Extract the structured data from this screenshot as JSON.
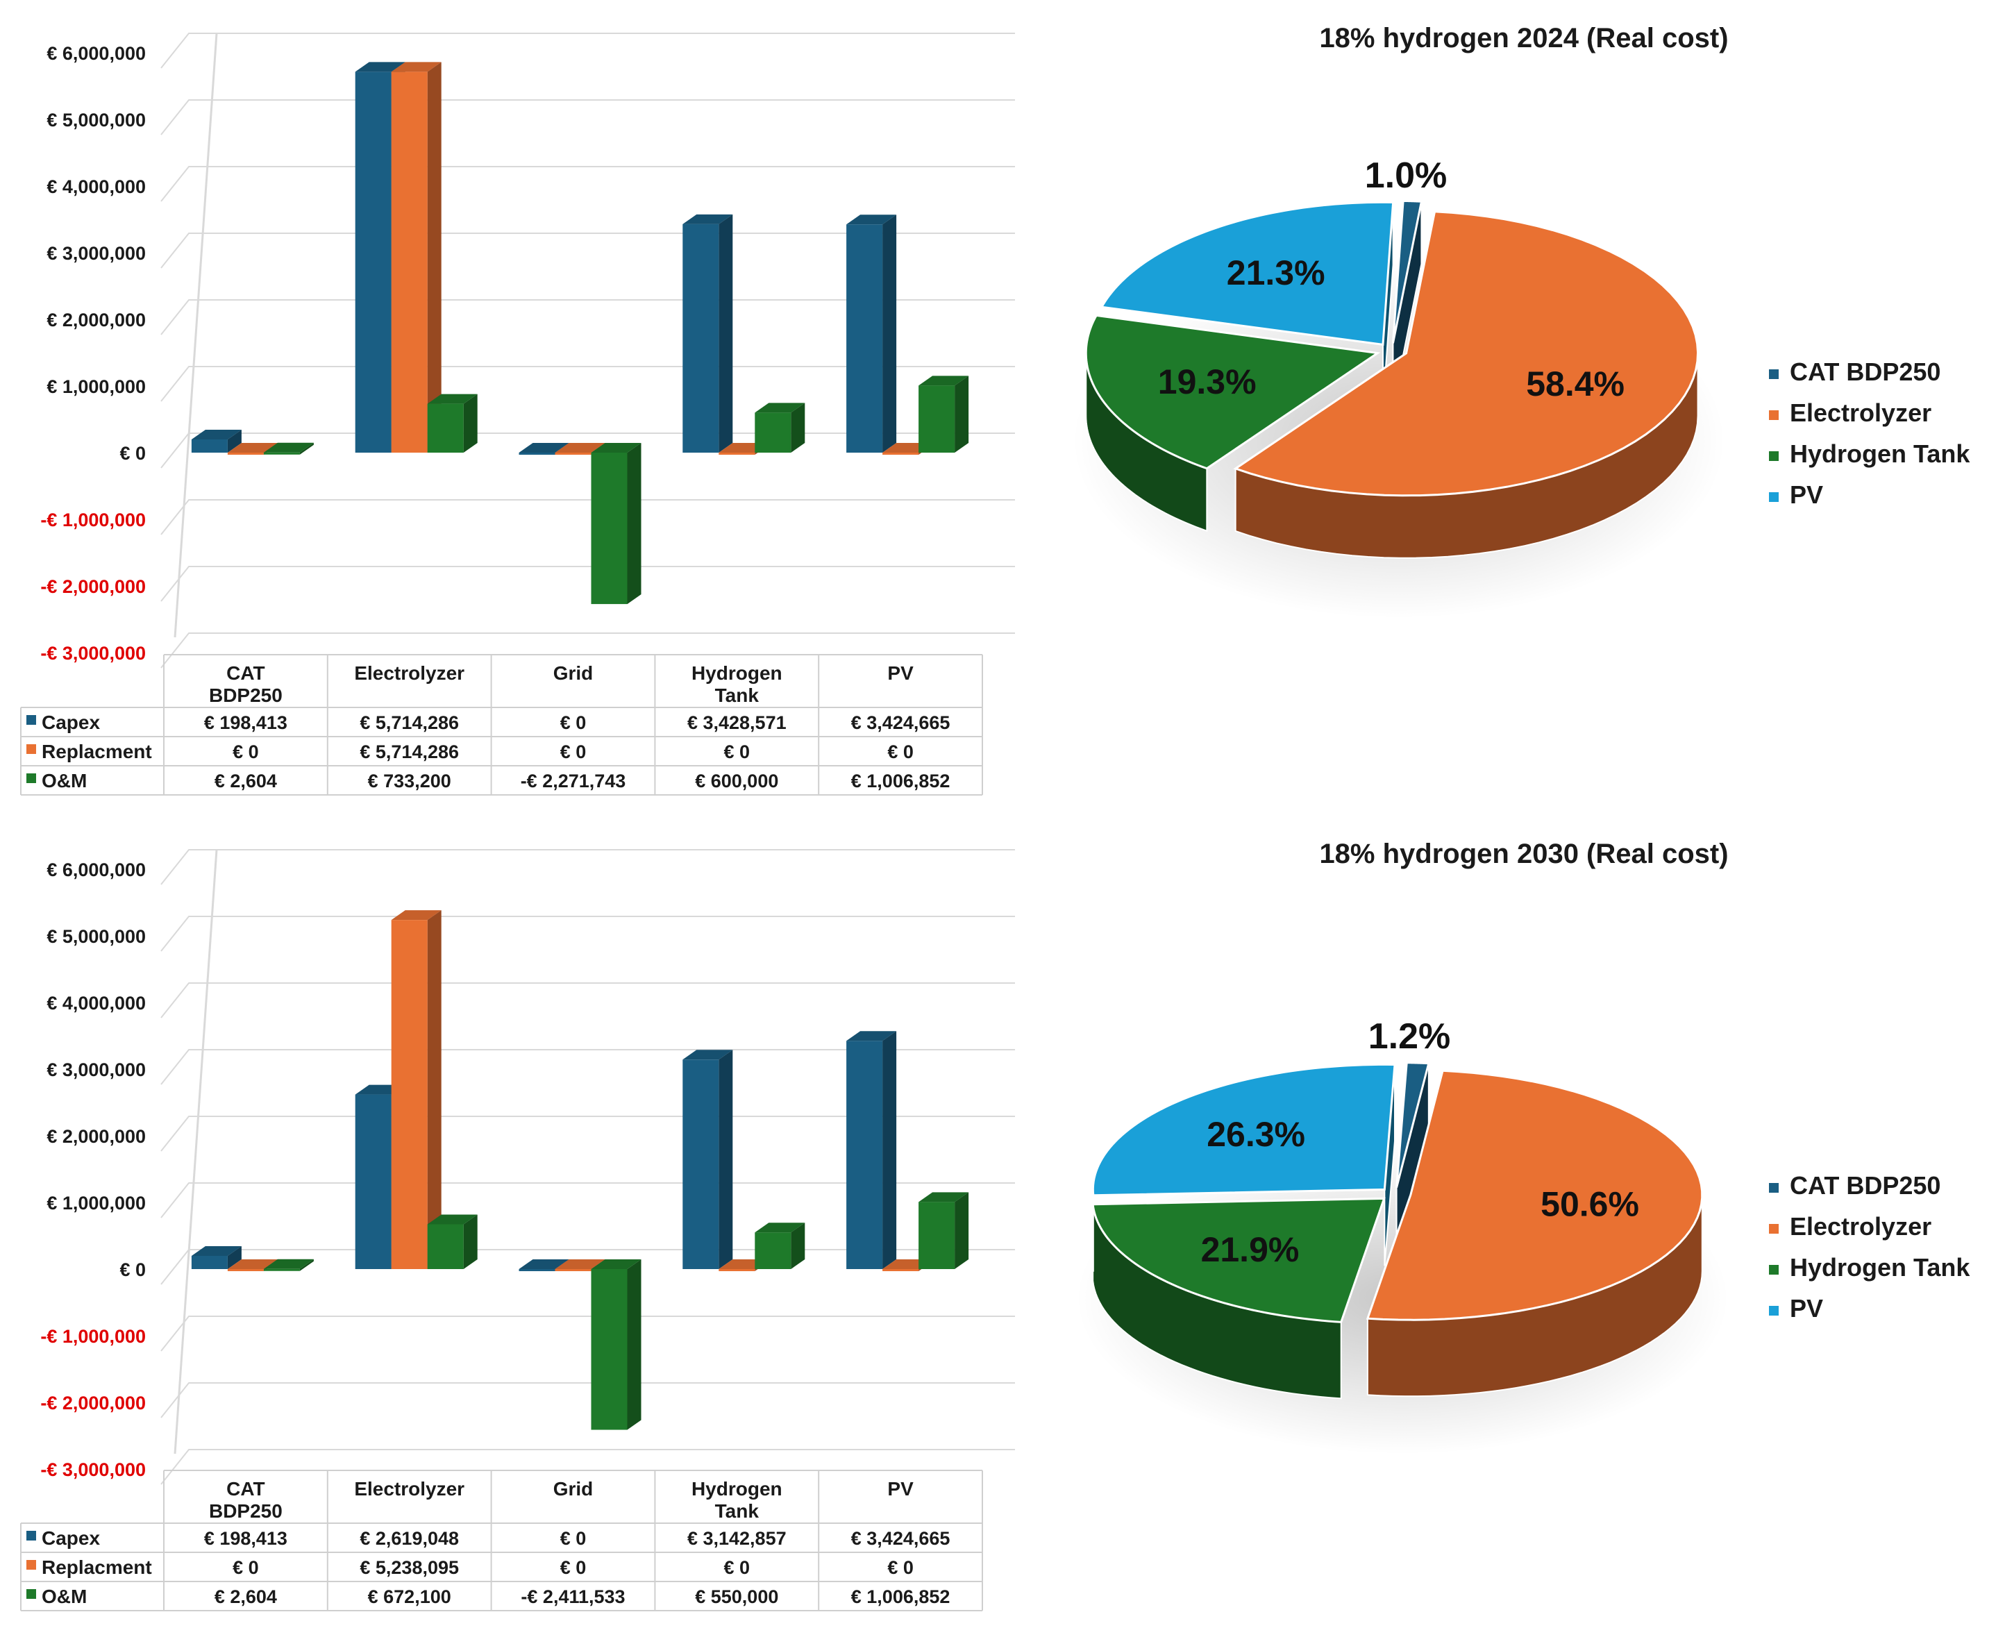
{
  "colors": {
    "capex": "#1a5e83",
    "replacement": "#e97132",
    "om": "#1e7a2a",
    "pv": "#1aa0d8",
    "negative_label": "#e00000",
    "text": "#1a1a1a",
    "grid": "#d9d9d9"
  },
  "chart_data": [
    {
      "type": "bar",
      "title": "",
      "categories": [
        "CAT BDP250",
        "Electrolyzer",
        "Grid",
        "Hydrogen Tank",
        "PV"
      ],
      "category_labels": [
        [
          "CAT",
          "BDP250"
        ],
        [
          "Electrolyzer"
        ],
        [
          "Grid"
        ],
        [
          "Hydrogen",
          "Tank"
        ],
        [
          "PV"
        ]
      ],
      "ylim": [
        -3000000,
        6000000
      ],
      "yticks": [
        6000000,
        5000000,
        4000000,
        3000000,
        2000000,
        1000000,
        0,
        -1000000,
        -2000000,
        -3000000
      ],
      "ytick_labels": [
        "€ 6,000,000",
        "€ 5,000,000",
        "€ 4,000,000",
        "€ 3,000,000",
        "€ 2,000,000",
        "€ 1,000,000",
        "€ 0",
        "-€ 1,000,000",
        "-€ 2,000,000",
        "-€ 3,000,000"
      ],
      "grid": true,
      "series": [
        {
          "name": "Capex",
          "color_key": "capex",
          "values": [
            198413,
            5714286,
            0,
            3428571,
            3424665
          ],
          "labels": [
            "€ 198,413",
            "€ 5,714,286",
            "€ 0",
            "€ 3,428,571",
            "€ 3,424,665"
          ]
        },
        {
          "name": "Replacment",
          "color_key": "replacement",
          "values": [
            0,
            5714286,
            0,
            0,
            0
          ],
          "labels": [
            "€ 0",
            "€ 5,714,286",
            "€ 0",
            "€ 0",
            "€ 0"
          ]
        },
        {
          "name": "O&M",
          "color_key": "om",
          "values": [
            2604,
            733200,
            -2271743,
            600000,
            1006852
          ],
          "labels": [
            "€ 2,604",
            "€ 733,200",
            "-€ 2,271,743",
            "€ 600,000",
            "€ 1,006,852"
          ]
        }
      ]
    },
    {
      "type": "pie",
      "title": "18% hydrogen 2024 (Real cost)",
      "slices": [
        {
          "name": "CAT BDP250",
          "value": 1.0,
          "label": "1.0%",
          "color_key": "capex"
        },
        {
          "name": "Electrolyzer",
          "value": 58.4,
          "label": "58.4%",
          "color_key": "replacement"
        },
        {
          "name": "Hydrogen Tank",
          "value": 19.3,
          "label": "19.3%",
          "color_key": "om"
        },
        {
          "name": "PV",
          "value": 21.3,
          "label": "21.3%",
          "color_key": "pv"
        }
      ],
      "legend": [
        "CAT BDP250",
        "Electrolyzer",
        "Hydrogen Tank",
        "PV"
      ],
      "legend_position": "right"
    },
    {
      "type": "bar",
      "title": "",
      "categories": [
        "CAT BDP250",
        "Electrolyzer",
        "Grid",
        "Hydrogen Tank",
        "PV"
      ],
      "category_labels": [
        [
          "CAT",
          "BDP250"
        ],
        [
          "Electrolyzer"
        ],
        [
          "Grid"
        ],
        [
          "Hydrogen",
          "Tank"
        ],
        [
          "PV"
        ]
      ],
      "ylim": [
        -3000000,
        6000000
      ],
      "yticks": [
        6000000,
        5000000,
        4000000,
        3000000,
        2000000,
        1000000,
        0,
        -1000000,
        -2000000,
        -3000000
      ],
      "ytick_labels": [
        "€ 6,000,000",
        "€ 5,000,000",
        "€ 4,000,000",
        "€ 3,000,000",
        "€ 2,000,000",
        "€ 1,000,000",
        "€ 0",
        "-€ 1,000,000",
        "-€ 2,000,000",
        "-€ 3,000,000"
      ],
      "grid": true,
      "series": [
        {
          "name": "Capex",
          "color_key": "capex",
          "values": [
            198413,
            2619048,
            0,
            3142857,
            3424665
          ],
          "labels": [
            "€ 198,413",
            "€ 2,619,048",
            "€ 0",
            "€ 3,142,857",
            "€ 3,424,665"
          ]
        },
        {
          "name": "Replacment",
          "color_key": "replacement",
          "values": [
            0,
            5238095,
            0,
            0,
            0
          ],
          "labels": [
            "€ 0",
            "€ 5,238,095",
            "€ 0",
            "€ 0",
            "€ 0"
          ]
        },
        {
          "name": "O&M",
          "color_key": "om",
          "values": [
            2604,
            672100,
            -2411533,
            550000,
            1006852
          ],
          "labels": [
            "€ 2,604",
            "€ 672,100",
            "-€ 2,411,533",
            "€ 550,000",
            "€ 1,006,852"
          ]
        }
      ]
    },
    {
      "type": "pie",
      "title": "18% hydrogen 2030 (Real cost)",
      "slices": [
        {
          "name": "CAT BDP250",
          "value": 1.2,
          "label": "1.2%",
          "color_key": "capex"
        },
        {
          "name": "Electrolyzer",
          "value": 50.6,
          "label": "50.6%",
          "color_key": "replacement"
        },
        {
          "name": "Hydrogen Tank",
          "value": 21.9,
          "label": "21.9%",
          "color_key": "om"
        },
        {
          "name": "PV",
          "value": 26.3,
          "label": "26.3%",
          "color_key": "pv"
        }
      ],
      "legend": [
        "CAT BDP250",
        "Electrolyzer",
        "Hydrogen Tank",
        "PV"
      ],
      "legend_position": "right"
    }
  ]
}
